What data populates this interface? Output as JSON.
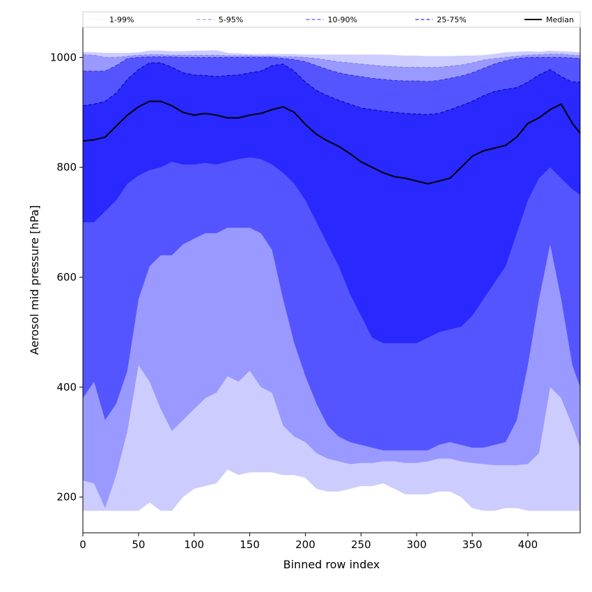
{
  "chart_data": {
    "type": "area",
    "title": "",
    "xlabel": "Binned row index",
    "ylabel": "Aerosol mid pressure [hPa]",
    "xlim": [
      0,
      447
    ],
    "ylim": [
      135,
      1055
    ],
    "x_ticks": [
      0,
      50,
      100,
      150,
      200,
      250,
      300,
      350,
      400
    ],
    "y_ticks": [
      200,
      400,
      600,
      800,
      1000
    ],
    "grid": false,
    "legend_position": "top",
    "x": [
      0,
      10,
      20,
      30,
      40,
      50,
      60,
      70,
      80,
      90,
      100,
      110,
      120,
      130,
      140,
      150,
      160,
      170,
      180,
      190,
      200,
      210,
      220,
      230,
      240,
      250,
      260,
      270,
      280,
      290,
      300,
      310,
      320,
      330,
      340,
      350,
      360,
      370,
      380,
      390,
      400,
      410,
      420,
      430,
      440,
      447
    ],
    "bands": [
      {
        "name": "1-99%",
        "color": "#ccccff",
        "line_color": "#ccccff",
        "line_style": "dotted",
        "lower": [
          175,
          175,
          175,
          175,
          175,
          175,
          190,
          175,
          175,
          200,
          215,
          220,
          225,
          250,
          240,
          245,
          245,
          245,
          240,
          240,
          235,
          215,
          210,
          210,
          215,
          220,
          220,
          225,
          215,
          205,
          205,
          205,
          210,
          210,
          200,
          180,
          175,
          175,
          180,
          180,
          175,
          175,
          175,
          175,
          175,
          175
        ],
        "upper": [
          1010,
          1009,
          1008,
          1008,
          1008,
          1009,
          1012,
          1012,
          1011,
          1011,
          1012,
          1012,
          1013,
          1008,
          1007,
          1006,
          1006,
          1006,
          1006,
          1006,
          1005,
          1005,
          1005,
          1005,
          1005,
          1005,
          1005,
          1005,
          1004,
          1003,
          1003,
          1002,
          1002,
          1002,
          1003,
          1003,
          1004,
          1006,
          1009,
          1010,
          1011,
          1010,
          1012,
          1011,
          1010,
          1009
        ]
      },
      {
        "name": "5-95%",
        "color": "#9999ff",
        "line_color": "#8080ee",
        "line_style": "dashed",
        "lower": [
          230,
          225,
          180,
          240,
          320,
          440,
          410,
          360,
          320,
          340,
          360,
          380,
          390,
          420,
          410,
          430,
          400,
          390,
          330,
          310,
          300,
          280,
          270,
          265,
          260,
          262,
          262,
          265,
          265,
          262,
          262,
          265,
          270,
          270,
          265,
          262,
          260,
          258,
          258,
          258,
          260,
          280,
          400,
          380,
          330,
          290
        ],
        "upper": [
          1005,
          1004,
          1000,
          1000,
          1002,
          1004,
          1005,
          1005,
          1004,
          1004,
          1004,
          1004,
          1004,
          1003,
          1003,
          1003,
          1002,
          1002,
          1001,
          1001,
          1000,
          998,
          995,
          992,
          990,
          988,
          986,
          984,
          983,
          982,
          982,
          982,
          982,
          984,
          986,
          990,
          995,
          998,
          1000,
          1002,
          1004,
          1005,
          1006,
          1006,
          1004,
          1003
        ]
      },
      {
        "name": "10-90%",
        "color": "#5555ff",
        "line_color": "#3030dd",
        "line_style": "dashed",
        "lower": [
          380,
          410,
          340,
          370,
          430,
          560,
          620,
          640,
          640,
          660,
          670,
          680,
          680,
          690,
          690,
          690,
          680,
          650,
          560,
          480,
          420,
          370,
          330,
          310,
          300,
          295,
          290,
          285,
          285,
          285,
          285,
          285,
          295,
          300,
          295,
          290,
          290,
          295,
          300,
          340,
          440,
          560,
          660,
          560,
          440,
          400
        ],
        "upper": [
          975,
          975,
          975,
          985,
          998,
          1000,
          1001,
          1001,
          1001,
          1000,
          1000,
          1000,
          1000,
          1000,
          1000,
          1000,
          1000,
          1000,
          998,
          996,
          992,
          985,
          978,
          972,
          968,
          965,
          962,
          960,
          958,
          957,
          957,
          956,
          958,
          962,
          966,
          972,
          980,
          988,
          994,
          998,
          1000,
          1000,
          1000,
          1000,
          999,
          998
        ]
      },
      {
        "name": "25-75%",
        "color": "#2828ff",
        "line_color": "#0000aa",
        "line_style": "dashed",
        "lower": [
          700,
          700,
          720,
          740,
          770,
          785,
          795,
          800,
          810,
          805,
          805,
          808,
          805,
          810,
          815,
          818,
          815,
          805,
          790,
          770,
          740,
          700,
          660,
          620,
          570,
          530,
          490,
          480,
          480,
          480,
          480,
          490,
          500,
          505,
          510,
          530,
          560,
          590,
          620,
          680,
          740,
          780,
          800,
          780,
          760,
          750
        ],
        "upper": [
          912,
          915,
          920,
          935,
          960,
          978,
          990,
          990,
          982,
          972,
          968,
          967,
          965,
          967,
          968,
          972,
          975,
          985,
          988,
          975,
          955,
          940,
          930,
          922,
          915,
          908,
          905,
          902,
          900,
          898,
          897,
          896,
          898,
          905,
          912,
          920,
          930,
          938,
          942,
          945,
          955,
          968,
          978,
          965,
          955,
          955
        ]
      }
    ],
    "series": [
      {
        "name": "Median",
        "color": "#000000",
        "values": [
          848,
          850,
          855,
          875,
          895,
          910,
          920,
          920,
          912,
          900,
          895,
          898,
          895,
          890,
          890,
          895,
          898,
          905,
          910,
          900,
          878,
          860,
          848,
          838,
          825,
          810,
          800,
          790,
          783,
          780,
          775,
          770,
          775,
          780,
          800,
          820,
          830,
          835,
          840,
          855,
          880,
          890,
          905,
          915,
          880,
          862
        ]
      }
    ]
  }
}
